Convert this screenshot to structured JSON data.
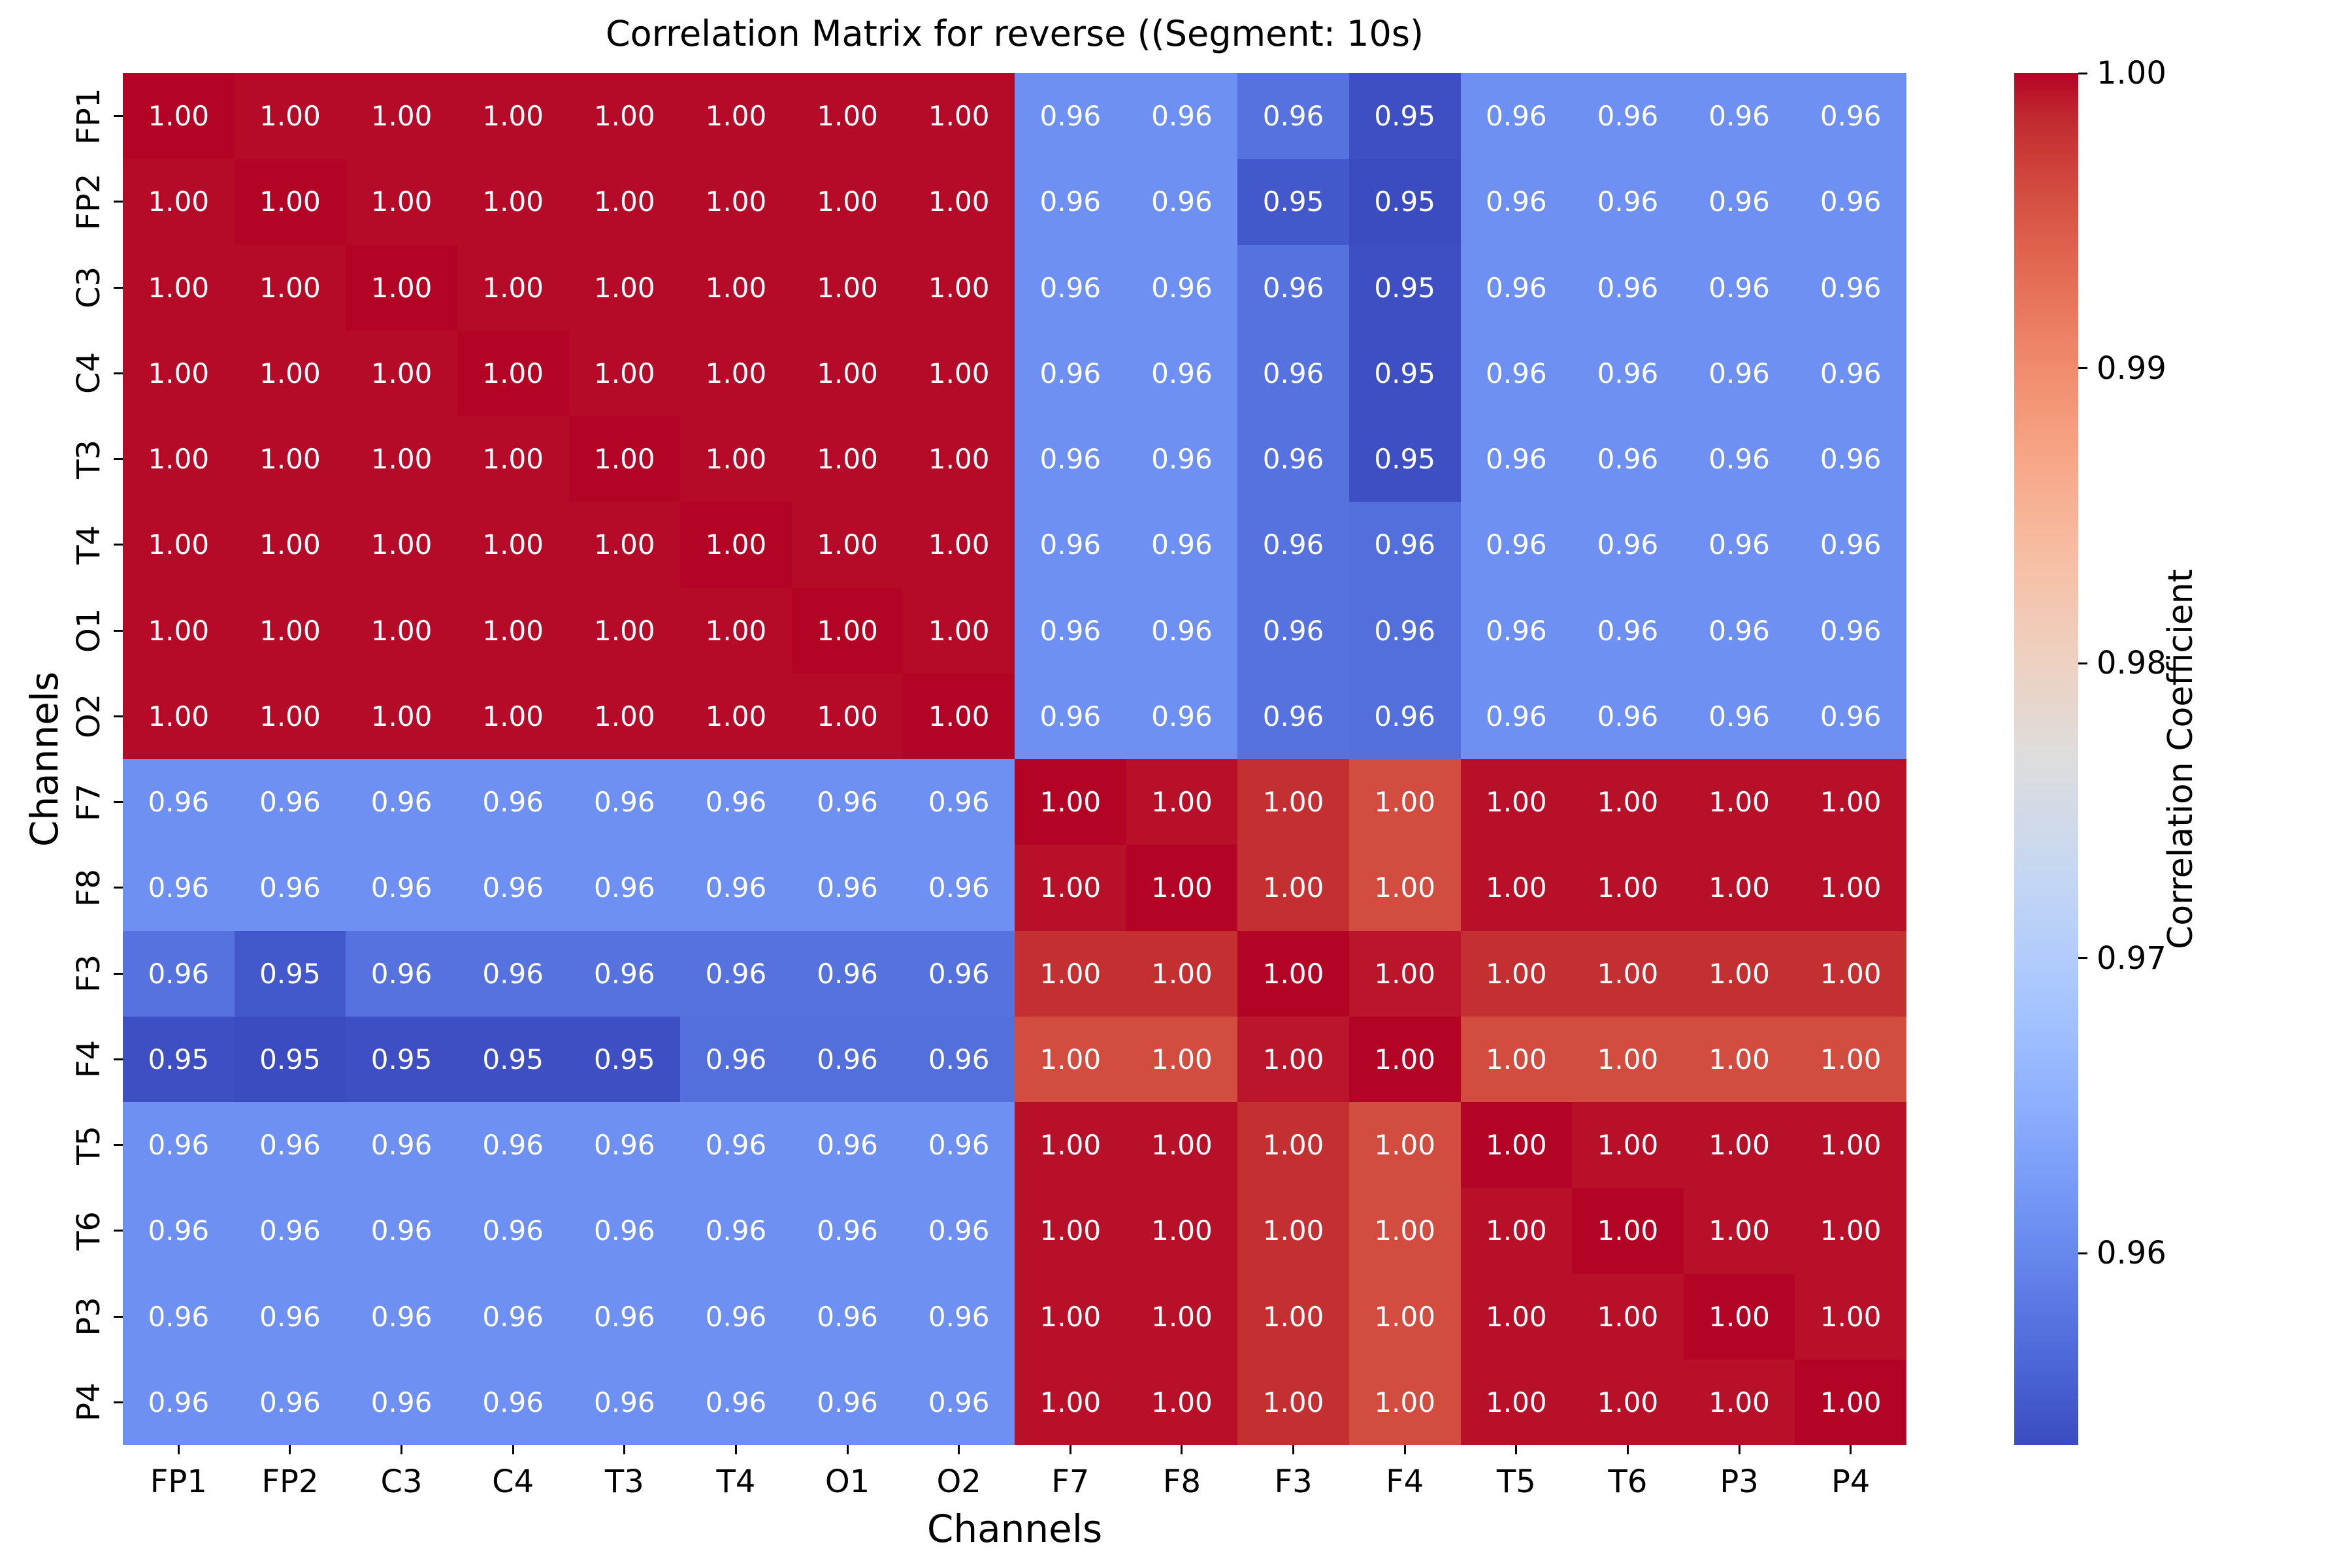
{
  "figure": {
    "background": "#ffffff",
    "text_color": "#000000",
    "cell_text_color": "#ffffff"
  },
  "chart_data": {
    "type": "heatmap",
    "title": "Correlation Matrix for reverse ((Segment: 10s)",
    "xlabel": "Channels",
    "ylabel": "Channels",
    "categories": [
      "FP1",
      "FP2",
      "C3",
      "C4",
      "T3",
      "T4",
      "O1",
      "O2",
      "F7",
      "F8",
      "F3",
      "F4",
      "T5",
      "T6",
      "P3",
      "P4"
    ],
    "values": [
      [
        1.0,
        0.9997,
        0.9997,
        0.9997,
        0.9997,
        0.9997,
        0.9997,
        0.9997,
        0.961,
        0.961,
        0.9575,
        0.9538,
        0.961,
        0.961,
        0.961,
        0.961
      ],
      [
        0.9997,
        1.0,
        0.9997,
        0.9997,
        0.9997,
        0.9997,
        0.9997,
        0.9997,
        0.961,
        0.961,
        0.9548,
        0.9535,
        0.961,
        0.961,
        0.961,
        0.961
      ],
      [
        0.9997,
        0.9997,
        1.0,
        0.9997,
        0.9997,
        0.9997,
        0.9997,
        0.9997,
        0.961,
        0.961,
        0.9575,
        0.9538,
        0.961,
        0.961,
        0.961,
        0.961
      ],
      [
        0.9997,
        0.9997,
        0.9997,
        1.0,
        0.9997,
        0.9997,
        0.9997,
        0.9997,
        0.961,
        0.961,
        0.9575,
        0.9538,
        0.961,
        0.961,
        0.961,
        0.961
      ],
      [
        0.9997,
        0.9997,
        0.9997,
        0.9997,
        1.0,
        0.9997,
        0.9997,
        0.9997,
        0.961,
        0.961,
        0.9575,
        0.9538,
        0.961,
        0.961,
        0.961,
        0.961
      ],
      [
        0.9997,
        0.9997,
        0.9997,
        0.9997,
        0.9997,
        1.0,
        0.9997,
        0.9997,
        0.961,
        0.961,
        0.9575,
        0.9572,
        0.961,
        0.961,
        0.961,
        0.961
      ],
      [
        0.9997,
        0.9997,
        0.9997,
        0.9997,
        0.9997,
        0.9997,
        1.0,
        0.9997,
        0.961,
        0.961,
        0.9575,
        0.9572,
        0.961,
        0.961,
        0.961,
        0.961
      ],
      [
        0.9997,
        0.9997,
        0.9997,
        0.9997,
        0.9997,
        0.9997,
        0.9997,
        1.0,
        0.961,
        0.961,
        0.9575,
        0.9572,
        0.961,
        0.961,
        0.961,
        0.961
      ],
      [
        0.961,
        0.961,
        0.961,
        0.961,
        0.961,
        0.961,
        0.961,
        0.961,
        1.0,
        0.9995,
        0.998,
        0.996,
        0.9995,
        0.9995,
        0.9995,
        0.9995
      ],
      [
        0.961,
        0.961,
        0.961,
        0.961,
        0.961,
        0.961,
        0.961,
        0.961,
        0.9995,
        1.0,
        0.998,
        0.996,
        0.9995,
        0.9995,
        0.9995,
        0.9995
      ],
      [
        0.9575,
        0.9548,
        0.9575,
        0.9575,
        0.9575,
        0.9575,
        0.9575,
        0.9575,
        0.998,
        0.998,
        1.0,
        0.9993,
        0.998,
        0.998,
        0.998,
        0.998
      ],
      [
        0.9538,
        0.9535,
        0.9538,
        0.9538,
        0.9538,
        0.9572,
        0.9572,
        0.9572,
        0.996,
        0.996,
        0.9993,
        1.0,
        0.996,
        0.996,
        0.996,
        0.996
      ],
      [
        0.961,
        0.961,
        0.961,
        0.961,
        0.961,
        0.961,
        0.961,
        0.961,
        0.9995,
        0.9995,
        0.998,
        0.996,
        1.0,
        0.9995,
        0.9995,
        0.9995
      ],
      [
        0.961,
        0.961,
        0.961,
        0.961,
        0.961,
        0.961,
        0.961,
        0.961,
        0.9995,
        0.9995,
        0.998,
        0.996,
        0.9995,
        1.0,
        0.9995,
        0.9995
      ],
      [
        0.961,
        0.961,
        0.961,
        0.961,
        0.961,
        0.961,
        0.961,
        0.961,
        0.9995,
        0.9995,
        0.998,
        0.996,
        0.9995,
        0.9995,
        1.0,
        0.9995
      ],
      [
        0.961,
        0.961,
        0.961,
        0.961,
        0.961,
        0.961,
        0.961,
        0.961,
        0.9995,
        0.9995,
        0.998,
        0.996,
        0.9995,
        0.9995,
        0.9995,
        1.0
      ]
    ],
    "value_display_decimals": 2,
    "colormap": "coolwarm",
    "vmin": 0.9535,
    "vmax": 1.0,
    "legend_position": "right",
    "grid": false,
    "colorbar": {
      "label": "Correlation Coefficient",
      "ticks": [
        "1.00",
        "0.99",
        "0.98",
        "0.97",
        "0.96"
      ]
    }
  }
}
